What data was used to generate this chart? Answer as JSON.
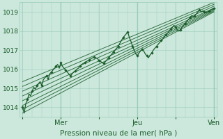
{
  "xlabel": "Pression niveau de la mer( hPa )",
  "bg_color": "#cce8dc",
  "grid_color": "#99ccbb",
  "line_color": "#1a5c2a",
  "ylim": [
    1013.5,
    1019.5
  ],
  "yticks": [
    1014,
    1015,
    1016,
    1017,
    1018,
    1019
  ],
  "xtick_labels": [
    "",
    "Mer",
    "",
    "Jeu",
    "",
    "Ven"
  ],
  "xtick_positions": [
    0,
    24,
    48,
    72,
    96,
    120
  ],
  "ensemble_starts": [
    1013.7,
    1013.9,
    1014.1,
    1014.35,
    1014.6,
    1014.85,
    1015.1,
    1015.35
  ],
  "ensemble_ends": [
    1019.0,
    1019.05,
    1019.1,
    1019.15,
    1019.2,
    1019.3,
    1019.4,
    1019.5
  ],
  "main_y": [
    1014.0,
    1013.7,
    1014.2,
    1014.4,
    1014.7,
    1014.6,
    1014.85,
    1015.05,
    1014.95,
    1015.15,
    1015.25,
    1015.35,
    1015.15,
    1015.45,
    1015.55,
    1015.65,
    1015.45,
    1015.75,
    1015.85,
    1015.95,
    1016.05,
    1016.15,
    1016.25,
    1016.05,
    1016.35,
    1016.15,
    1016.05,
    1015.95,
    1015.85,
    1015.75,
    1015.65,
    1015.75,
    1015.85,
    1015.9,
    1016.0,
    1016.05,
    1016.15,
    1016.25,
    1016.3,
    1016.35,
    1016.4,
    1016.45,
    1016.5,
    1016.55,
    1016.6,
    1016.65,
    1016.6,
    1016.55,
    1016.45,
    1016.4,
    1016.35,
    1016.3,
    1016.4,
    1016.5,
    1016.6,
    1016.7,
    1016.8,
    1016.9,
    1017.0,
    1017.1,
    1017.2,
    1017.35,
    1017.5,
    1017.65,
    1017.75,
    1017.85,
    1017.95,
    1017.65,
    1017.45,
    1017.2,
    1017.0,
    1016.8,
    1016.7,
    1016.85,
    1016.95,
    1017.05,
    1016.95,
    1016.8,
    1016.7,
    1016.6,
    1016.75,
    1016.85,
    1017.0,
    1017.1,
    1017.2,
    1017.3,
    1017.4,
    1017.5,
    1017.6,
    1017.7,
    1017.8,
    1017.9,
    1018.0,
    1018.1,
    1018.2,
    1018.3,
    1018.2,
    1018.05,
    1018.0,
    1018.05,
    1018.2,
    1018.3,
    1018.4,
    1018.5,
    1018.6,
    1018.7,
    1018.8,
    1018.75,
    1018.8,
    1018.9,
    1019.0,
    1019.1,
    1019.0,
    1019.05,
    1019.0,
    1018.95,
    1019.0,
    1019.05,
    1019.1,
    1019.15,
    1019.2
  ]
}
